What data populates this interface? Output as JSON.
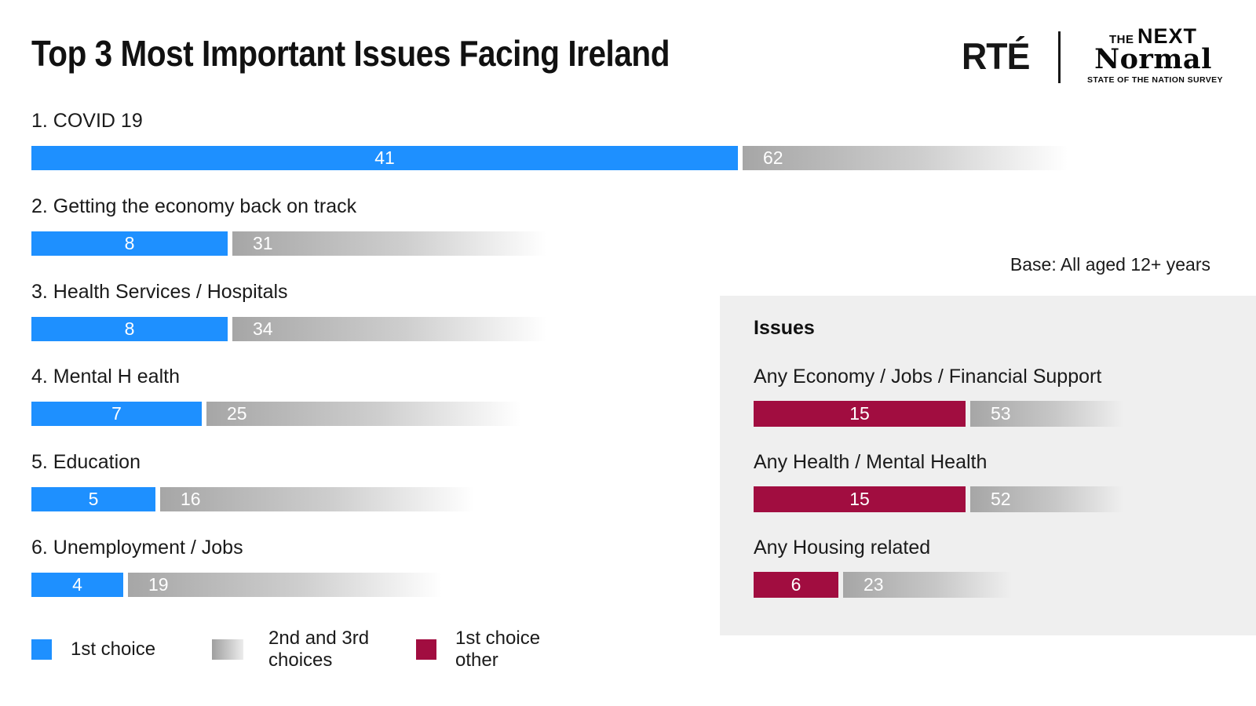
{
  "header": {
    "title": "Top 3 Most Important Issues Facing Ireland",
    "rte_logo": "RTÉ",
    "campaign_logo": {
      "line1_the": "THE",
      "line1_next": "NEXT",
      "line2": "Normal",
      "tagline": "STATE OF THE NATION SURVEY"
    }
  },
  "base_note": "Base: All aged 12+ years",
  "panel": {
    "title": "Issues"
  },
  "legend": {
    "items": [
      {
        "label": "1st choice",
        "swatch": "first-choice-blue"
      },
      {
        "label": "2nd and 3rd choices",
        "swatch": "secondary-choices-gray-gradient"
      },
      {
        "label": "1st choice other",
        "swatch": "first-choice-other-maroon"
      }
    ]
  },
  "colors": {
    "first_choice_blue": "#1E90FF",
    "secondary_choices_gray": "#A6A6A6",
    "first_choice_other_maroon": "#A10D40",
    "panel_background": "#EFEFEF",
    "text": "#1A1A1A"
  },
  "chart_data": [
    {
      "type": "bar",
      "orientation": "horizontal",
      "title": "Top 3 Most Important Issues Facing Ireland",
      "categories": [
        "1. COVID 19",
        "2. Getting the economy back on track",
        "3. Health Services / Hospitals",
        "4. Mental H ealth",
        "5. Education",
        "6. Unemployment / Jobs"
      ],
      "series": [
        {
          "name": "1st choice",
          "values": [
            41,
            8,
            8,
            7,
            5,
            4
          ]
        },
        {
          "name": "2nd and 3rd choices",
          "values": [
            62,
            31,
            34,
            25,
            16,
            19
          ]
        }
      ],
      "value_labels_on_bars": true,
      "grid": false,
      "axes_shown": false
    },
    {
      "type": "bar",
      "orientation": "horizontal",
      "title": "Issues",
      "categories": [
        "Any Economy / Jobs / Financial Support",
        "Any Health / Mental Health",
        "Any Housing related"
      ],
      "series": [
        {
          "name": "1st choice other",
          "values": [
            15,
            15,
            6
          ]
        },
        {
          "name": "2nd and 3rd choices",
          "values": [
            53,
            52,
            23
          ]
        }
      ],
      "value_labels_on_bars": true,
      "grid": false,
      "axes_shown": false
    }
  ]
}
